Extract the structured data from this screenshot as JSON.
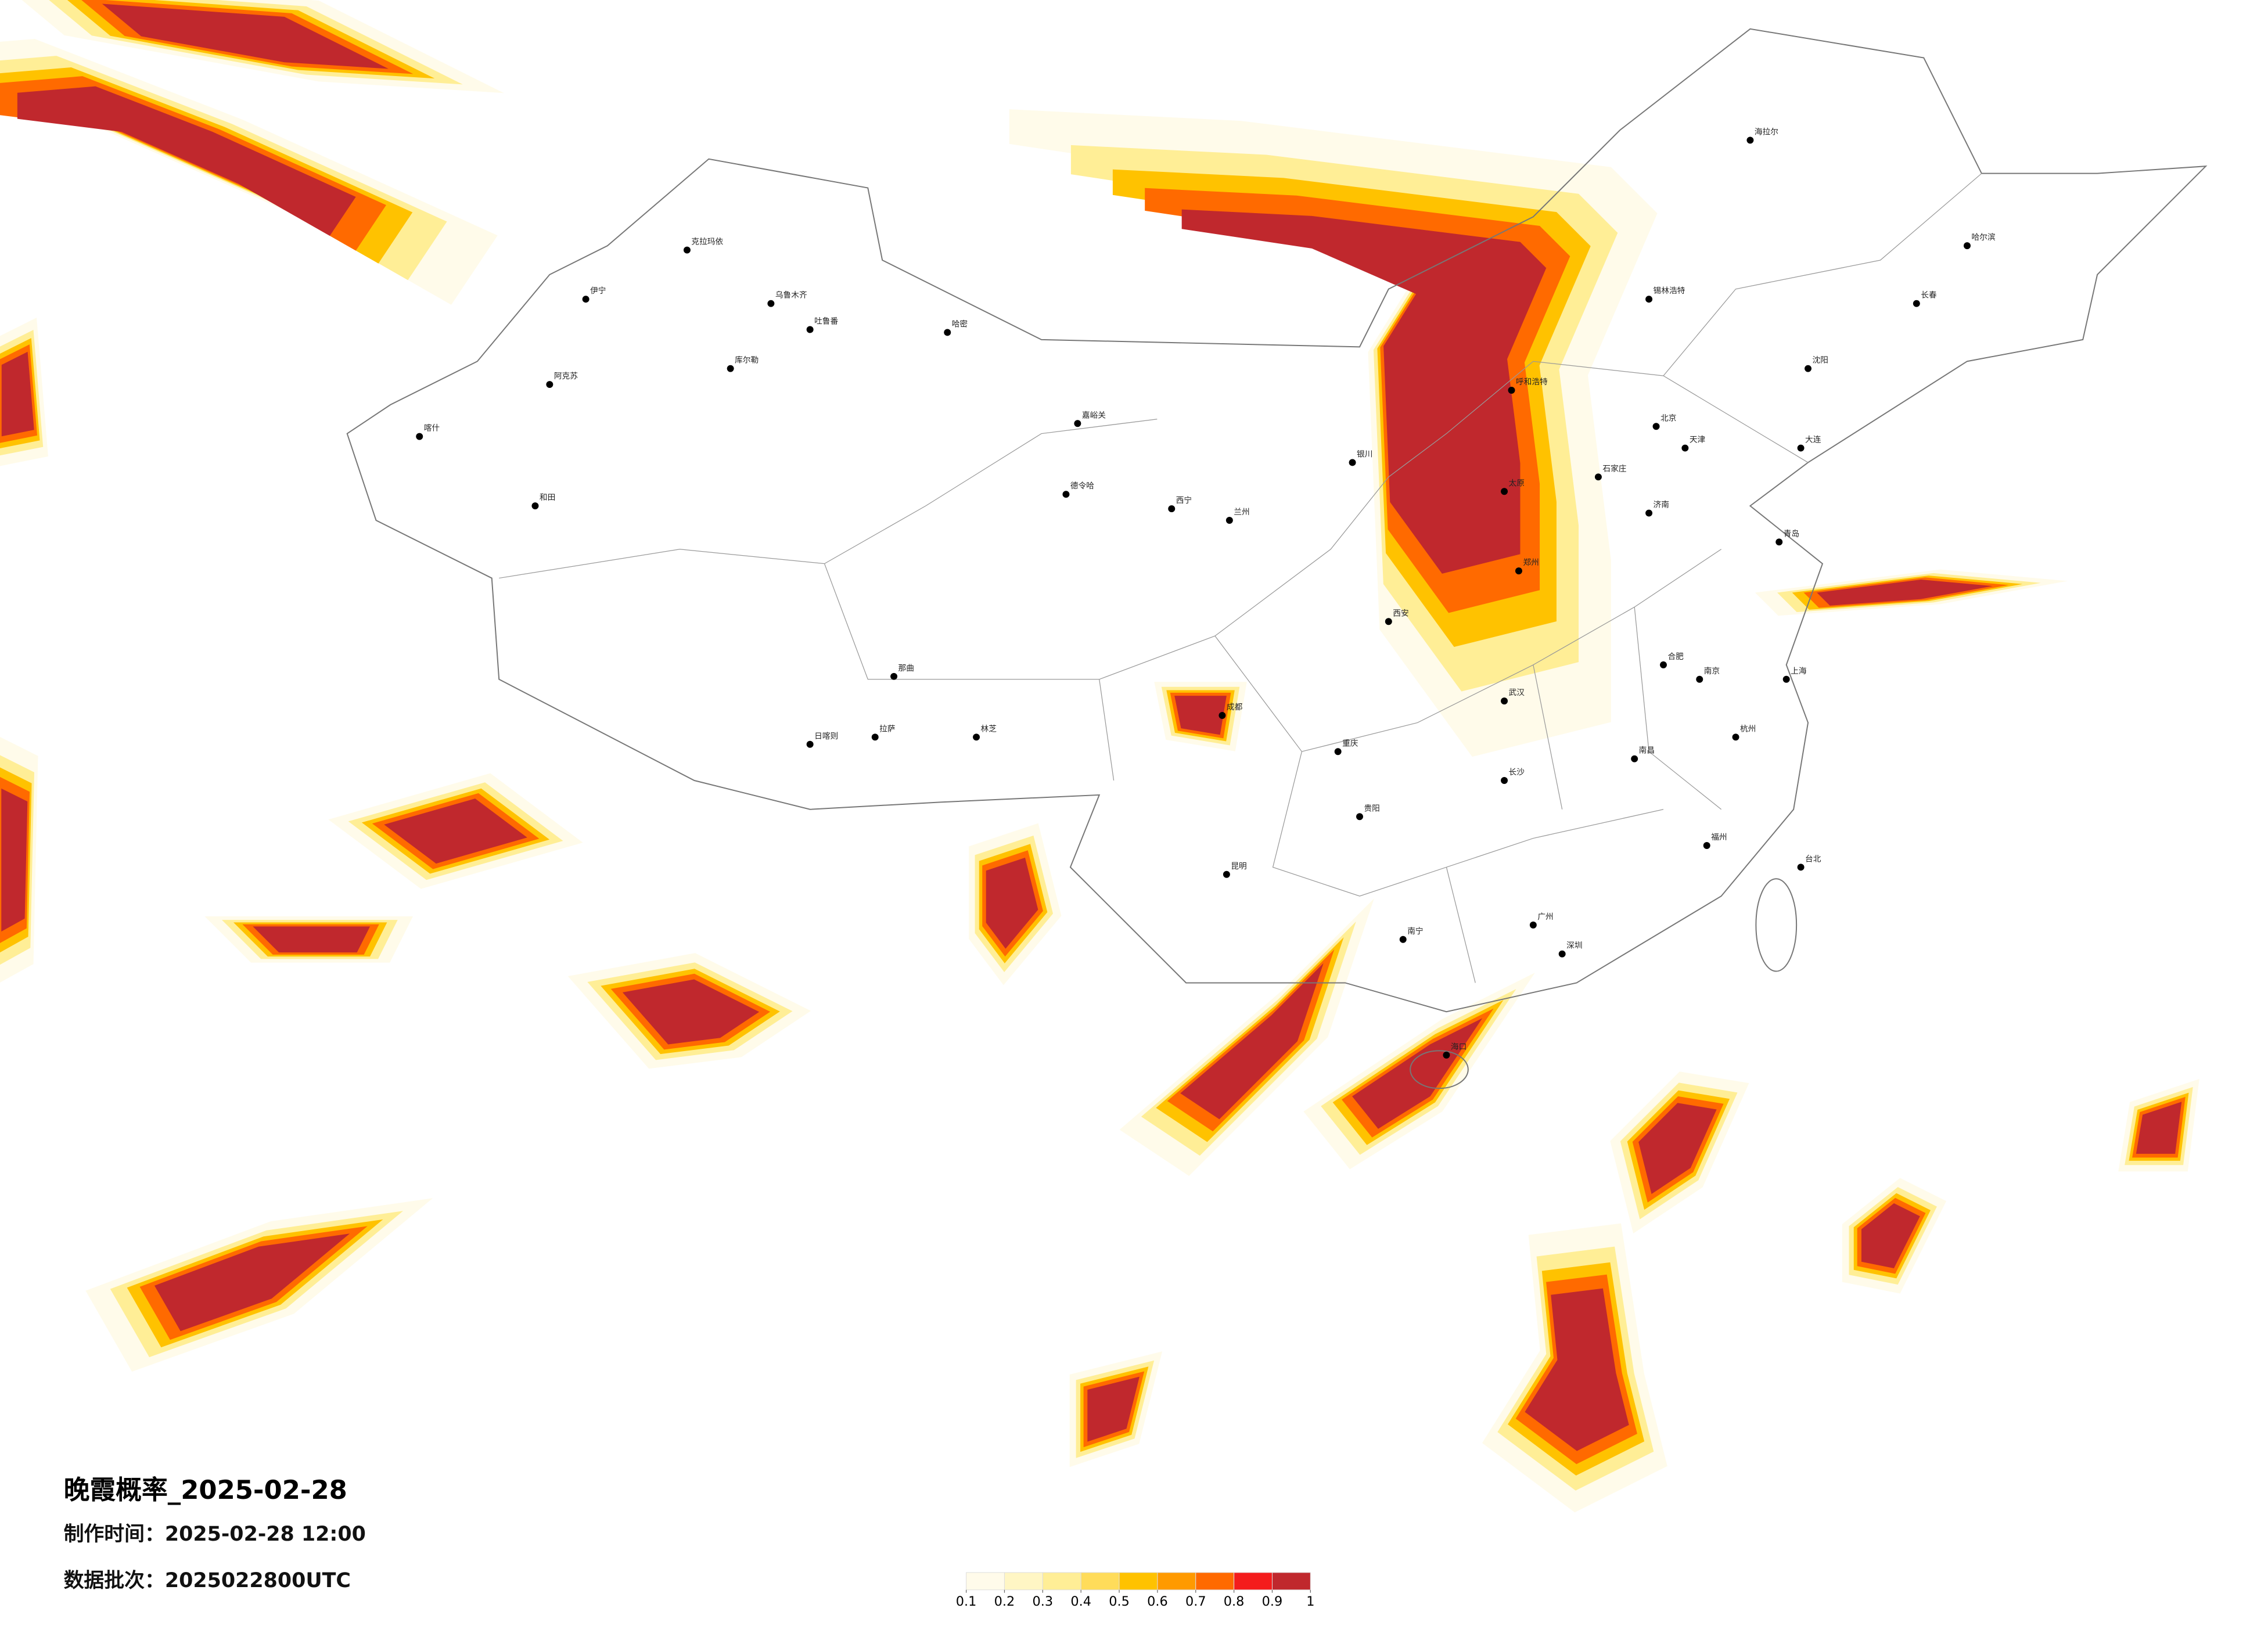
{
  "title": "晚霞概率_2025-02-28",
  "production_time": "制作时间：2025-02-28 12:00",
  "data_batch": "数据批次：2025022800UTC",
  "legend": {
    "ticks": [
      0.1,
      0.2,
      0.3,
      0.4,
      0.5,
      0.6,
      0.7,
      0.8,
      0.9,
      1
    ],
    "colors": [
      "#fffbea",
      "#fff6c4",
      "#ffee96",
      "#ffdc5a",
      "#ffc200",
      "#ff9a00",
      "#ff6a00",
      "#f41c1c",
      "#c0282d"
    ]
  },
  "cities": [
    "乌鲁木齐",
    "克拉玛依",
    "伊宁",
    "阿克苏",
    "喀什",
    "和田",
    "哈密",
    "吐鲁番",
    "库尔勒",
    "嘉峪关",
    "西宁",
    "兰州",
    "德令哈",
    "拉萨",
    "日喀则",
    "林芝",
    "那曲",
    "成都",
    "重庆",
    "昆明",
    "贵阳",
    "南宁",
    "广州",
    "深圳",
    "海口",
    "福州",
    "台北",
    "杭州",
    "上海",
    "南京",
    "武汉",
    "长沙",
    "郑州",
    "西安",
    "太原",
    "北京",
    "天津",
    "石家庄",
    "济南",
    "呼和浩特",
    "银川",
    "沈阳",
    "长春",
    "哈尔滨",
    "大连",
    "青岛",
    "海拉尔",
    "锡林浩特",
    "南昌",
    "合肥"
  ]
}
